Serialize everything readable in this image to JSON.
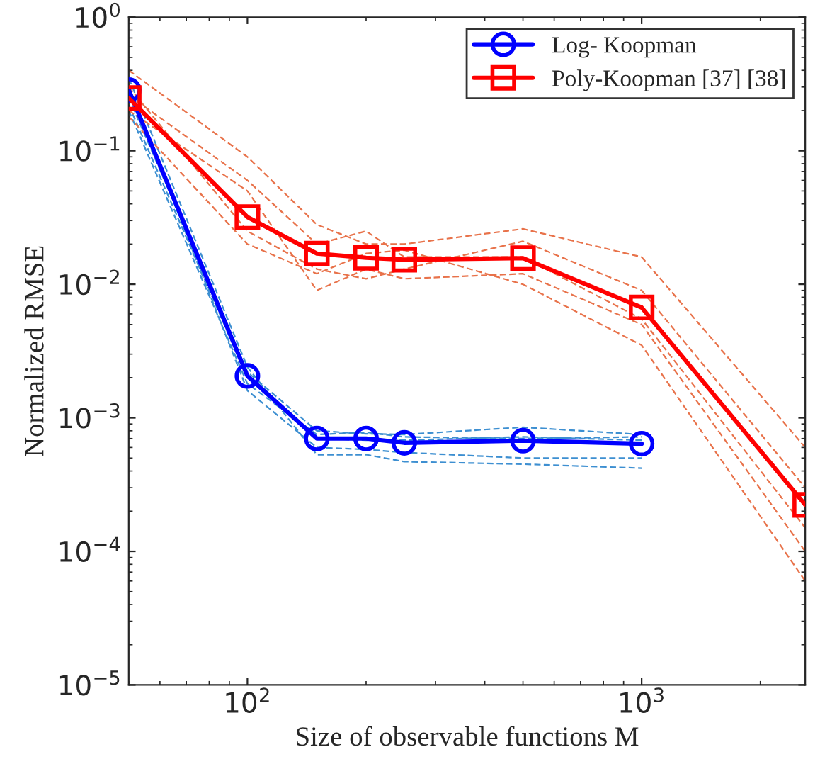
{
  "chart_data": {
    "type": "line",
    "xlabel": "Size of observable functions M",
    "ylabel": "Normalized RMSE",
    "log": "xy",
    "xlim": [
      50,
      2600
    ],
    "ylim": [
      1e-05,
      1
    ],
    "xticks": [
      {
        "value": 100,
        "label": "10$^{2}$"
      },
      {
        "value": 1000,
        "label": "10$^{3}$"
      }
    ],
    "yticks": [
      {
        "value": 1e-05,
        "label": "10$^{−5}$"
      },
      {
        "value": 0.0001,
        "label": "10$^{−4}$"
      },
      {
        "value": 0.001,
        "label": "10$^{−3}$"
      },
      {
        "value": 0.01,
        "label": "10$^{−2}$"
      },
      {
        "value": 0.1,
        "label": "10$^{−1}$"
      },
      {
        "value": 1,
        "label": "10$^{0}$"
      }
    ],
    "grid": false,
    "legend": "top right",
    "series": [
      {
        "x": [
          50,
          100,
          150,
          200,
          250,
          500,
          1000
        ],
        "values": [
          0.2,
          0.0018,
          0.00075,
          0.00078,
          0.00072,
          0.0007,
          0.00072
        ],
        "color": "#3d8fd1",
        "marker": "none",
        "line_style": "dashed"
      },
      {
        "x": [
          50,
          100,
          150,
          200,
          250,
          500,
          1000
        ],
        "values": [
          0.35,
          0.0024,
          0.00053,
          0.00053,
          0.00047,
          0.00045,
          0.00042
        ],
        "color": "#3d8fd1",
        "marker": "none",
        "line_style": "dashed"
      },
      {
        "x": [
          50,
          100,
          150,
          200,
          250,
          500,
          1000
        ],
        "values": [
          0.25,
          0.0022,
          0.0008,
          0.00076,
          0.00075,
          0.00085,
          0.00075
        ],
        "color": "#3d8fd1",
        "marker": "none",
        "line_style": "dashed"
      },
      {
        "x": [
          50,
          100,
          150,
          200,
          250,
          500,
          1000
        ],
        "values": [
          0.3,
          0.0016,
          0.0006,
          0.00058,
          0.00055,
          0.0005,
          0.0005
        ],
        "color": "#3d8fd1",
        "marker": "none",
        "line_style": "dashed"
      },
      {
        "x": [
          50,
          100,
          150,
          200,
          250,
          500,
          1000
        ],
        "values": [
          0.22,
          0.002,
          0.0007,
          0.00068,
          0.00068,
          0.00072,
          0.00068
        ],
        "color": "#3d8fd1",
        "marker": "none",
        "line_style": "dashed"
      },
      {
        "x": [
          50,
          100,
          150,
          200,
          250,
          500,
          1000,
          2600
        ],
        "values": [
          0.4,
          0.09,
          0.028,
          0.02,
          0.02,
          0.026,
          0.016,
          0.0006
        ],
        "color": "#e8724a",
        "marker": "none",
        "line_style": "dashed"
      },
      {
        "x": [
          50,
          100,
          150,
          200,
          250,
          500,
          1000,
          2600
        ],
        "values": [
          0.2,
          0.05,
          0.009,
          0.013,
          0.011,
          0.012,
          0.005,
          0.0001
        ],
        "color": "#e8724a",
        "marker": "none",
        "line_style": "dashed"
      },
      {
        "x": [
          50,
          100,
          150,
          200,
          250,
          500,
          1000,
          2600
        ],
        "values": [
          0.3,
          0.025,
          0.013,
          0.011,
          0.013,
          0.021,
          0.009,
          0.0003
        ],
        "color": "#e8724a",
        "marker": "none",
        "line_style": "dashed"
      },
      {
        "x": [
          50,
          100,
          150,
          200,
          250,
          500,
          1000,
          2600
        ],
        "values": [
          0.18,
          0.02,
          0.012,
          0.017,
          0.018,
          0.01,
          0.0035,
          6e-05
        ],
        "color": "#e8724a",
        "marker": "none",
        "line_style": "dashed"
      },
      {
        "x": [
          50,
          100,
          150,
          200,
          250,
          500,
          1000,
          2600
        ],
        "values": [
          0.26,
          0.06,
          0.02,
          0.025,
          0.016,
          0.016,
          0.0055,
          0.00015
        ],
        "color": "#e8724a",
        "marker": "none",
        "line_style": "dashed"
      },
      {
        "x": [
          50,
          100,
          150,
          200,
          250,
          500,
          1000
        ],
        "values": [
          0.285,
          0.00206,
          0.0007,
          0.0007,
          0.00065,
          0.000675,
          0.00064
        ],
        "name": "Log- Koopman",
        "color": "#0000ff",
        "marker": "circle",
        "line_style": "solid"
      },
      {
        "x": [
          50,
          100,
          150,
          200,
          250,
          500,
          1000,
          2600
        ],
        "values": [
          0.248,
          0.0319,
          0.017,
          0.0158,
          0.0153,
          0.0157,
          0.0067,
          0.000223
        ],
        "name": "Poly-Koopman [37] [38]",
        "color": "#ff0000",
        "marker": "square",
        "line_style": "solid"
      }
    ]
  }
}
